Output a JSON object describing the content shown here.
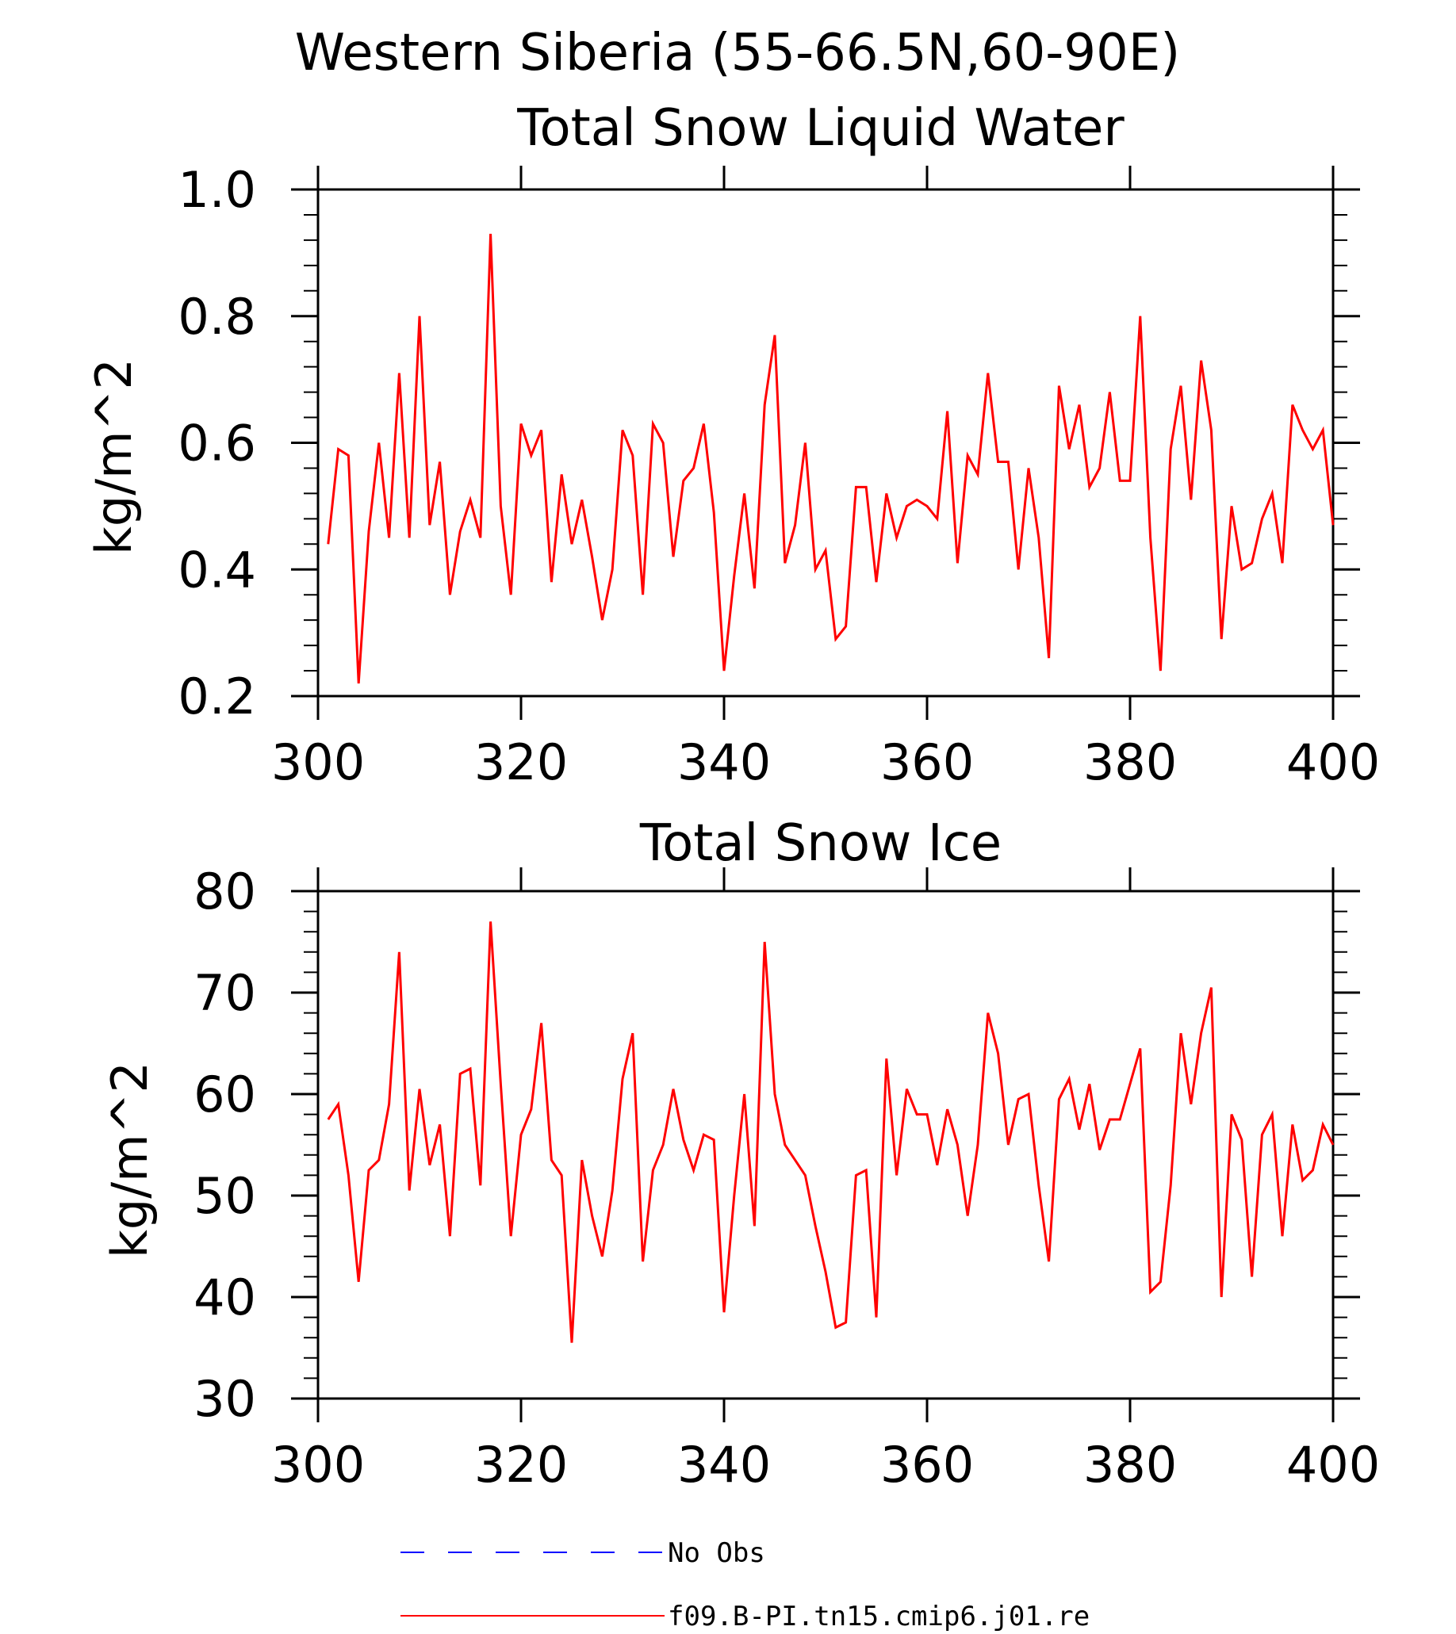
{
  "figure": {
    "title": "Western Siberia (55-66.5N,60-90E)"
  },
  "chart_data": [
    {
      "type": "line",
      "title": "Total Snow Liquid Water",
      "xlabel": "",
      "ylabel": "kg/m^2",
      "xlim": [
        300,
        400
      ],
      "ylim": [
        0.2,
        1.0
      ],
      "xticks": [
        "300",
        "320",
        "340",
        "360",
        "380",
        "400"
      ],
      "yticks": [
        "0.2",
        "0.4",
        "0.6",
        "0.8",
        "1.0"
      ],
      "grid": false,
      "x_start": 301,
      "series": [
        {
          "name": "f09.B-PI.tn15.cmip6.j01.re",
          "color": "#ff0000",
          "values": [
            0.44,
            0.59,
            0.58,
            0.22,
            0.46,
            0.6,
            0.45,
            0.71,
            0.45,
            0.8,
            0.47,
            0.57,
            0.36,
            0.46,
            0.51,
            0.45,
            0.93,
            0.5,
            0.36,
            0.63,
            0.58,
            0.62,
            0.38,
            0.55,
            0.44,
            0.51,
            0.42,
            0.32,
            0.4,
            0.62,
            0.58,
            0.36,
            0.63,
            0.6,
            0.42,
            0.54,
            0.56,
            0.63,
            0.49,
            0.24,
            0.39,
            0.52,
            0.37,
            0.66,
            0.77,
            0.41,
            0.47,
            0.6,
            0.4,
            0.43,
            0.29,
            0.31,
            0.53,
            0.53,
            0.38,
            0.52,
            0.45,
            0.5,
            0.51,
            0.5,
            0.48,
            0.65,
            0.41,
            0.58,
            0.55,
            0.71,
            0.57,
            0.57,
            0.4,
            0.56,
            0.45,
            0.26,
            0.69,
            0.59,
            0.66,
            0.53,
            0.56,
            0.68,
            0.54,
            0.54,
            0.8,
            0.45,
            0.24,
            0.59,
            0.69,
            0.51,
            0.73,
            0.62,
            0.29,
            0.5,
            0.4,
            0.41,
            0.48,
            0.52,
            0.41,
            0.66,
            0.62,
            0.59,
            0.62,
            0.47
          ]
        }
      ]
    },
    {
      "type": "line",
      "title": "Total Snow Ice",
      "xlabel": "",
      "ylabel": "kg/m^2",
      "xlim": [
        300,
        400
      ],
      "ylim": [
        30,
        80
      ],
      "xticks": [
        "300",
        "320",
        "340",
        "360",
        "380",
        "400"
      ],
      "yticks": [
        "30",
        "40",
        "50",
        "60",
        "70",
        "80"
      ],
      "grid": false,
      "x_start": 301,
      "series": [
        {
          "name": "f09.B-PI.tn15.cmip6.j01.re",
          "color": "#ff0000",
          "values": [
            57.5,
            59,
            52,
            41.5,
            52.5,
            53.5,
            59,
            74,
            50.5,
            60.5,
            53,
            57,
            46,
            62,
            62.5,
            51,
            77,
            61,
            46,
            56,
            58.5,
            67,
            53.5,
            52,
            35.5,
            53.5,
            48,
            44,
            50.5,
            61.5,
            66,
            43.5,
            52.5,
            55,
            60.5,
            55.5,
            52.5,
            56,
            55.5,
            38.5,
            50,
            60,
            47,
            75,
            60,
            55,
            53.5,
            52,
            47,
            42.5,
            37,
            37.5,
            52,
            52.5,
            38,
            63.5,
            52,
            60.5,
            58,
            58,
            53,
            58.5,
            55,
            48,
            55,
            68,
            64,
            55,
            59.5,
            60,
            51,
            43.5,
            59.5,
            61.5,
            56.5,
            61,
            54.5,
            57.5,
            57.5,
            61,
            64.5,
            40.5,
            41.5,
            51,
            66,
            59,
            66,
            70.5,
            40,
            58,
            55.5,
            42,
            56,
            58,
            46,
            57,
            51.5,
            52.5,
            57,
            55
          ]
        }
      ]
    }
  ],
  "legend": {
    "items": [
      {
        "label": "No Obs",
        "color": "#0000ff",
        "style": "dashed"
      },
      {
        "label": "f09.B-PI.tn15.cmip6.j01.re",
        "color": "#ff0000",
        "style": "solid"
      }
    ]
  }
}
